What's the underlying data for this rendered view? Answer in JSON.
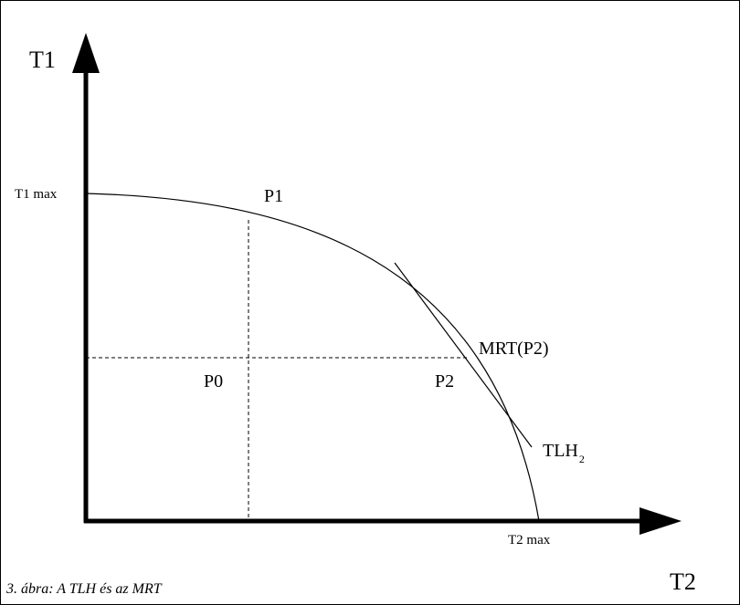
{
  "diagram": {
    "axis_y_label": "T1",
    "axis_x_label": "T2",
    "t1_max_label": "T1 max",
    "t2_max_label": "T2 max",
    "point_p0": "P0",
    "point_p1": "P1",
    "point_p2": "P2",
    "mrt_label": "MRT(P2)",
    "tlh_label_base": "TLH",
    "tlh_label_sub": "2",
    "caption": "3. ábra: A TLH és az MRT"
  }
}
